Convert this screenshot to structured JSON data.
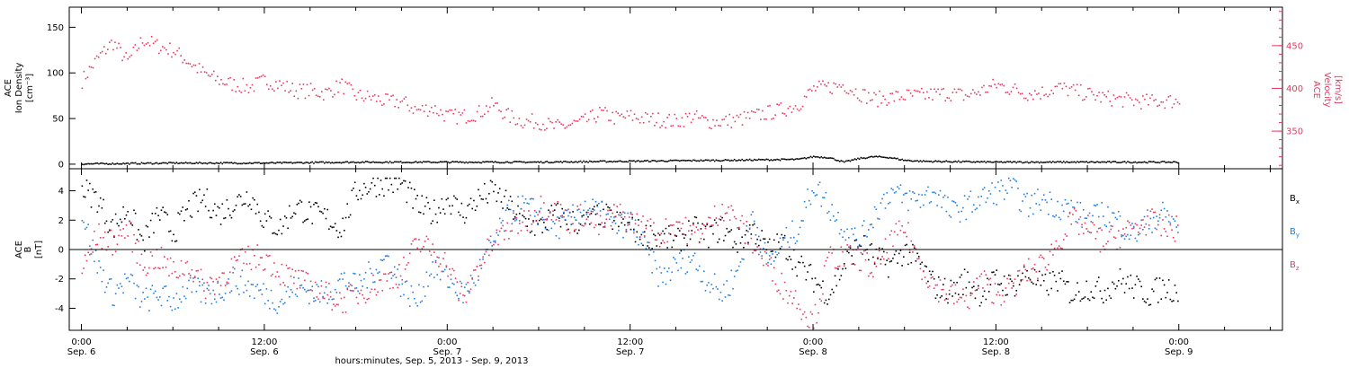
{
  "chart_data": [
    {
      "type": "scatter",
      "panel": "top",
      "ylabel_left": [
        "ACE",
        "Ion Density",
        "[cm⁻³]"
      ],
      "ylabel_right": [
        "ACE",
        "Velocity",
        "[km/s]"
      ],
      "ylim_left": [
        -5,
        172
      ],
      "ylim_right": [
        306,
        495
      ],
      "yticks_left": [
        0,
        50,
        100,
        150
      ],
      "yticks_right": [
        350,
        400,
        450
      ],
      "yticks_right_minor": [
        325,
        375,
        425,
        475
      ],
      "series": [
        {
          "axis": "right",
          "color": "#e8385f",
          "x_hours": [
            0,
            1,
            2,
            3,
            4,
            5,
            6,
            7,
            8,
            9,
            10,
            11,
            12,
            13,
            14,
            15,
            16,
            17,
            18,
            19,
            20,
            21,
            22,
            23,
            24,
            25,
            26,
            27,
            28,
            29,
            30,
            31,
            32,
            33,
            34,
            35,
            36,
            37,
            38,
            39,
            40,
            41,
            42,
            43,
            44,
            45,
            46,
            47,
            48,
            49,
            50,
            51,
            52,
            53,
            54,
            55,
            56,
            57,
            58,
            59,
            60,
            61,
            62,
            63,
            64,
            65,
            66,
            67,
            68,
            69,
            70,
            71,
            72
          ],
          "y": [
            410,
            435,
            455,
            432,
            458,
            450,
            445,
            432,
            418,
            410,
            405,
            402,
            410,
            405,
            398,
            398,
            395,
            405,
            392,
            390,
            385,
            385,
            375,
            378,
            368,
            368,
            372,
            382,
            368,
            362,
            362,
            355,
            358,
            362,
            372,
            366,
            368,
            365,
            364,
            362,
            368,
            362,
            362,
            364,
            368,
            372,
            376,
            382,
            400,
            402,
            405,
            395,
            388,
            390,
            392,
            392,
            394,
            395,
            392,
            398,
            405,
            400,
            395,
            396,
            402,
            398,
            394,
            390,
            388,
            386,
            385,
            386,
            386
          ]
        },
        {
          "axis": "left",
          "color": "#000000",
          "x_hours": [
            0,
            6,
            12,
            18,
            24,
            30,
            36,
            42,
            47,
            48,
            49,
            50,
            51,
            52,
            53,
            54,
            55,
            60,
            66,
            72
          ],
          "y": [
            1,
            2,
            2,
            3,
            3,
            3,
            4,
            5,
            6,
            9,
            8,
            3,
            7,
            9,
            8,
            5,
            4,
            3,
            3,
            3
          ]
        }
      ]
    },
    {
      "type": "scatter",
      "panel": "bottom",
      "ylabel": [
        "ACE",
        "B",
        "[nT]"
      ],
      "ylim": [
        -5.5,
        5.5
      ],
      "yticks": [
        -4,
        -2,
        0,
        2,
        4
      ],
      "legend": [
        "Bx",
        "By",
        "Bz"
      ],
      "legend_placement": "right",
      "series": [
        {
          "name": "Bx",
          "color": "#000000",
          "x_hours": [
            0,
            1,
            2,
            3,
            4,
            5,
            6,
            7,
            8,
            9,
            10,
            11,
            12,
            13,
            14,
            15,
            16,
            17,
            18,
            19,
            20,
            21,
            22,
            23,
            24,
            25,
            26,
            27,
            28,
            29,
            30,
            31,
            32,
            33,
            34,
            35,
            36,
            37,
            38,
            39,
            40,
            41,
            42,
            43,
            44,
            45,
            46,
            47,
            48,
            49,
            50,
            51,
            52,
            53,
            54,
            55,
            56,
            57,
            58,
            59,
            60,
            61,
            62,
            63,
            64,
            65,
            66,
            67,
            68,
            69,
            70,
            71,
            72
          ],
          "y": [
            4.2,
            3.5,
            1.5,
            2.8,
            0.5,
            2.5,
            1.2,
            2.8,
            3.5,
            2.5,
            3.2,
            3.8,
            2.0,
            1.5,
            3.0,
            2.5,
            2.2,
            1.5,
            4.0,
            4.5,
            4.6,
            4.5,
            3.0,
            2.5,
            3.5,
            2.5,
            3.5,
            4.0,
            3.0,
            2.0,
            1.5,
            2.5,
            2.0,
            1.8,
            2.5,
            2.0,
            1.5,
            1.0,
            1.0,
            0.5,
            1.5,
            1.0,
            1.5,
            0.5,
            1.5,
            0.0,
            0.5,
            -1.0,
            -2.0,
            -3.0,
            -1.0,
            0.5,
            -0.5,
            -1.0,
            0.0,
            -1.0,
            -2.5,
            -2.8,
            -2.0,
            -3.0,
            -2.0,
            -2.5,
            -1.5,
            -2.5,
            -2.0,
            -3.0,
            -2.5,
            -2.8,
            -2.0,
            -2.5,
            -3.0,
            -2.5,
            -2.8
          ]
        },
        {
          "name": "By",
          "color": "#1f7fe0",
          "x_hours": [
            0,
            1,
            2,
            3,
            4,
            5,
            6,
            7,
            8,
            9,
            10,
            11,
            12,
            13,
            14,
            15,
            16,
            17,
            18,
            19,
            20,
            21,
            22,
            23,
            24,
            25,
            26,
            27,
            28,
            29,
            30,
            31,
            32,
            33,
            34,
            35,
            36,
            37,
            38,
            39,
            40,
            41,
            42,
            43,
            44,
            45,
            46,
            47,
            48,
            49,
            50,
            51,
            52,
            53,
            54,
            55,
            56,
            57,
            58,
            59,
            60,
            61,
            62,
            63,
            64,
            65,
            66,
            67,
            68,
            69,
            70,
            71,
            72
          ],
          "y": [
            2.5,
            -1.0,
            -3.0,
            -2.0,
            -3.5,
            -3.0,
            -3.5,
            -2.5,
            -3.0,
            -2.8,
            -2.0,
            -2.5,
            -3.0,
            -3.5,
            -2.5,
            -2.8,
            -3.0,
            -2.0,
            -2.5,
            -1.5,
            -0.5,
            -2.5,
            -3.5,
            -1.0,
            -2.0,
            -3.0,
            -1.5,
            0.5,
            2.5,
            3.0,
            2.5,
            1.5,
            2.0,
            3.0,
            2.5,
            1.5,
            2.0,
            0.0,
            -2.0,
            -1.0,
            -0.5,
            -2.0,
            -3.0,
            -1.5,
            2.5,
            -1.0,
            0.5,
            1.5,
            4.5,
            3.0,
            1.5,
            0.5,
            2.5,
            4.0,
            3.5,
            3.5,
            4.0,
            2.5,
            3.0,
            3.5,
            4.0,
            4.2,
            3.0,
            3.5,
            3.0,
            2.8,
            2.0,
            2.5,
            2.0,
            1.0,
            2.0,
            2.5,
            1.5
          ]
        },
        {
          "name": "Bz",
          "color": "#e8385f",
          "x_hours": [
            0,
            1,
            2,
            3,
            4,
            5,
            6,
            7,
            8,
            9,
            10,
            11,
            12,
            13,
            14,
            15,
            16,
            17,
            18,
            19,
            20,
            21,
            22,
            23,
            24,
            25,
            26,
            27,
            28,
            29,
            30,
            31,
            32,
            33,
            34,
            35,
            36,
            37,
            38,
            39,
            40,
            41,
            42,
            43,
            44,
            45,
            46,
            47,
            48,
            49,
            50,
            51,
            52,
            53,
            54,
            55,
            56,
            57,
            58,
            59,
            60,
            61,
            62,
            63,
            64,
            65,
            66,
            67,
            68,
            69,
            70,
            71,
            72
          ],
          "y": [
            -1.5,
            1.0,
            0.5,
            1.5,
            -1.0,
            -0.5,
            -1.5,
            -1.0,
            -2.5,
            -2.0,
            -1.0,
            -0.5,
            -0.5,
            -1.5,
            -2.0,
            -2.5,
            -3.0,
            -3.5,
            -3.0,
            -2.5,
            -2.0,
            -1.5,
            0.5,
            0.0,
            -1.0,
            -3.5,
            -1.0,
            0.5,
            1.5,
            2.0,
            3.0,
            2.8,
            2.0,
            2.5,
            1.5,
            2.5,
            2.0,
            1.5,
            1.0,
            2.0,
            1.0,
            1.5,
            3.0,
            2.0,
            0.5,
            -1.0,
            -2.5,
            -3.5,
            -5.0,
            -0.5,
            -0.5,
            -0.5,
            -1.5,
            0.5,
            1.5,
            -1.0,
            -2.5,
            -3.0,
            -3.5,
            -2.0,
            -3.0,
            -2.5,
            -1.5,
            -1.0,
            0.5,
            2.0,
            1.5,
            0.5,
            1.0,
            1.5,
            2.0,
            1.5,
            1.5
          ]
        }
      ]
    }
  ],
  "x_axis": {
    "time_ticks": [
      "0:00",
      "12:00",
      "0:00",
      "12:00",
      "0:00",
      "12:00",
      "0:00"
    ],
    "date_ticks": [
      "Sep. 6",
      "Sep. 6",
      "Sep. 7",
      "Sep. 7",
      "Sep. 8",
      "Sep. 8",
      "Sep. 9"
    ],
    "tick_hours": [
      0,
      12,
      24,
      36,
      48,
      60,
      72
    ],
    "xlim_hours": [
      -0.8,
      78.8
    ],
    "minor_step_hours": 3,
    "label": "hours:minutes, Sep.  5, 2013 - Sep.  9, 2013"
  },
  "colors": {
    "velocity": "#e8385f",
    "bx": "#000000",
    "by": "#1f7fe0",
    "bz": "#e8385f"
  }
}
